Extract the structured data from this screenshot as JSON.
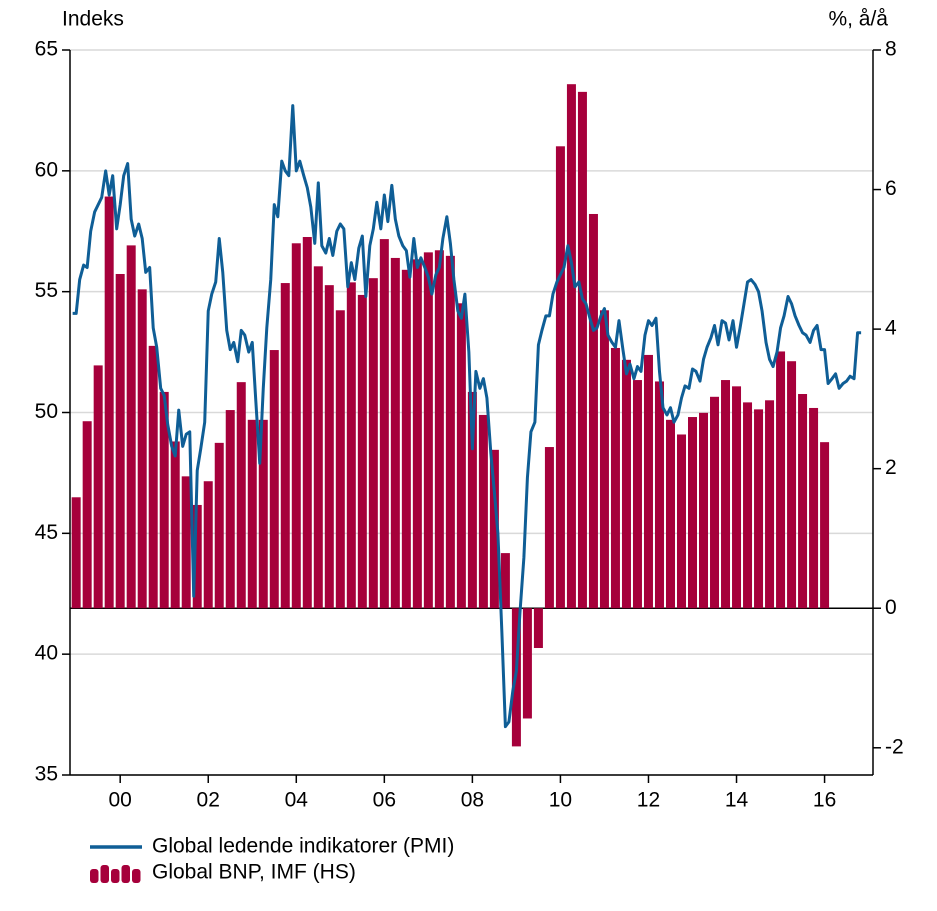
{
  "chart_data": {
    "type": "combo",
    "y_label": "Indeks",
    "y2_label": "%, å/å",
    "xlim": [
      1998.86,
      2017.1
    ],
    "xticks": [
      {
        "value": 2000,
        "label": "00"
      },
      {
        "value": 2002,
        "label": "02"
      },
      {
        "value": 2004,
        "label": "04"
      },
      {
        "value": 2006,
        "label": "06"
      },
      {
        "value": 2008,
        "label": "08"
      },
      {
        "value": 2010,
        "label": "10"
      },
      {
        "value": 2012,
        "label": "12"
      },
      {
        "value": 2014,
        "label": "14"
      },
      {
        "value": 2016,
        "label": "16"
      }
    ],
    "ylim": [
      35,
      65
    ],
    "yticks": [
      35,
      40,
      45,
      50,
      55,
      60,
      65
    ],
    "y2lim": [
      -2.39,
      8
    ],
    "y2ticks": [
      -2,
      0,
      2,
      4,
      6,
      8
    ],
    "grid": true,
    "legend": "bottom-left",
    "series": [
      {
        "name": "Global ledende indikatorer (PMI)",
        "type": "line",
        "color": "#0f5e96",
        "x": [
          1998.92,
          1999.0,
          1999.08,
          1999.17,
          1999.25,
          1999.33,
          1999.42,
          1999.5,
          1999.58,
          1999.67,
          1999.75,
          1999.83,
          1999.92,
          2000.0,
          2000.08,
          2000.17,
          2000.25,
          2000.33,
          2000.42,
          2000.5,
          2000.58,
          2000.67,
          2000.75,
          2000.83,
          2000.92,
          2001.0,
          2001.08,
          2001.17,
          2001.25,
          2001.33,
          2001.42,
          2001.5,
          2001.58,
          2001.67,
          2001.75,
          2001.83,
          2001.92,
          2002.0,
          2002.08,
          2002.17,
          2002.25,
          2002.33,
          2002.42,
          2002.5,
          2002.58,
          2002.67,
          2002.75,
          2002.83,
          2002.92,
          2003.0,
          2003.08,
          2003.17,
          2003.25,
          2003.33,
          2003.42,
          2003.5,
          2003.58,
          2003.67,
          2003.75,
          2003.83,
          2003.92,
          2004.0,
          2004.08,
          2004.17,
          2004.25,
          2004.33,
          2004.42,
          2004.5,
          2004.58,
          2004.67,
          2004.75,
          2004.83,
          2004.92,
          2005.0,
          2005.08,
          2005.17,
          2005.25,
          2005.33,
          2005.42,
          2005.5,
          2005.58,
          2005.67,
          2005.75,
          2005.83,
          2005.92,
          2006.0,
          2006.08,
          2006.17,
          2006.25,
          2006.33,
          2006.42,
          2006.5,
          2006.58,
          2006.67,
          2006.75,
          2006.83,
          2006.92,
          2007.0,
          2007.08,
          2007.17,
          2007.25,
          2007.33,
          2007.42,
          2007.5,
          2007.58,
          2007.67,
          2007.75,
          2007.83,
          2007.92,
          2008.0,
          2008.08,
          2008.17,
          2008.25,
          2008.33,
          2008.42,
          2008.5,
          2008.58,
          2008.67,
          2008.75,
          2008.83,
          2008.92,
          2009.0,
          2009.08,
          2009.17,
          2009.25,
          2009.33,
          2009.42,
          2009.5,
          2009.58,
          2009.67,
          2009.75,
          2009.83,
          2009.92,
          2010.0,
          2010.08,
          2010.17,
          2010.25,
          2010.33,
          2010.42,
          2010.5,
          2010.58,
          2010.67,
          2010.75,
          2010.83,
          2010.92,
          2011.0,
          2011.08,
          2011.17,
          2011.25,
          2011.33,
          2011.42,
          2011.5,
          2011.58,
          2011.67,
          2011.75,
          2011.83,
          2011.92,
          2012.0,
          2012.08,
          2012.17,
          2012.25,
          2012.33,
          2012.42,
          2012.5,
          2012.58,
          2012.67,
          2012.75,
          2012.83,
          2012.92,
          2013.0,
          2013.08,
          2013.17,
          2013.25,
          2013.33,
          2013.42,
          2013.5,
          2013.58,
          2013.67,
          2013.75,
          2013.83,
          2013.92,
          2014.0,
          2014.08,
          2014.17,
          2014.25,
          2014.33,
          2014.42,
          2014.5,
          2014.58,
          2014.67,
          2014.75,
          2014.83,
          2014.92,
          2015.0,
          2015.08,
          2015.17,
          2015.25,
          2015.33,
          2015.42,
          2015.5,
          2015.58,
          2015.67,
          2015.75,
          2015.83,
          2015.92,
          2016.0,
          2016.08,
          2016.17,
          2016.25,
          2016.33,
          2016.42,
          2016.5,
          2016.58,
          2016.67,
          2016.75,
          2016.83
        ],
        "values": [
          54.1,
          54.1,
          55.5,
          56.1,
          56.0,
          57.5,
          58.3,
          58.6,
          58.9,
          60.0,
          59.0,
          59.8,
          57.6,
          58.6,
          59.8,
          60.3,
          58.0,
          57.3,
          57.8,
          57.2,
          55.8,
          56.0,
          53.5,
          52.7,
          51.0,
          50.7,
          49.5,
          48.6,
          48.2,
          50.1,
          48.6,
          49.1,
          49.2,
          42.4,
          47.6,
          48.5,
          49.6,
          54.2,
          54.9,
          55.4,
          57.2,
          55.8,
          53.4,
          52.6,
          52.9,
          52.1,
          53.4,
          53.2,
          52.5,
          52.9,
          50.5,
          47.9,
          51.0,
          53.5,
          55.5,
          58.6,
          58.1,
          60.4,
          60.0,
          59.8,
          62.7,
          60.0,
          60.4,
          59.8,
          59.3,
          58.5,
          57.0,
          59.5,
          56.9,
          56.6,
          57.2,
          56.5,
          57.5,
          57.8,
          57.6,
          55.2,
          56.2,
          55.5,
          56.8,
          57.3,
          54.8,
          56.9,
          57.6,
          58.7,
          57.6,
          59.0,
          57.9,
          59.4,
          58.0,
          57.3,
          56.9,
          56.7,
          55.6,
          57.2,
          56.0,
          56.4,
          56.0,
          55.6,
          54.9,
          55.7,
          56.0,
          57.2,
          58.1,
          57.0,
          55.5,
          54.2,
          53.9,
          54.9,
          52.5,
          48.5,
          51.7,
          51.0,
          51.4,
          50.6,
          48.3,
          46.7,
          45.0,
          40.9,
          37.0,
          37.2,
          38.5,
          39.3,
          41.7,
          44.0,
          47.3,
          49.2,
          49.6,
          52.8,
          53.4,
          54.0,
          54.0,
          54.9,
          55.4,
          55.7,
          56.0,
          56.9,
          56.2,
          55.2,
          55.4,
          54.7,
          54.5,
          53.9,
          53.4,
          53.5,
          54.0,
          54.3,
          53.2,
          52.9,
          52.7,
          53.8,
          52.6,
          51.6,
          52.0,
          51.4,
          51.9,
          51.7,
          53.2,
          53.8,
          53.6,
          53.9,
          51.7,
          50.2,
          49.9,
          50.2,
          49.6,
          49.9,
          50.6,
          51.1,
          51.0,
          51.8,
          51.7,
          51.3,
          52.2,
          52.7,
          53.1,
          53.6,
          52.8,
          53.8,
          53.7,
          53.0,
          53.8,
          52.7,
          53.5,
          54.5,
          55.4,
          55.5,
          55.3,
          55.0,
          54.2,
          52.9,
          52.2,
          51.9,
          52.5,
          53.5,
          54.0,
          54.8,
          54.5,
          54.0,
          53.6,
          53.3,
          53.2,
          52.9,
          53.4,
          53.6,
          52.6,
          52.6,
          51.2,
          51.4,
          51.6,
          51.0,
          51.2,
          51.3,
          51.5,
          51.4,
          53.3,
          53.3
        ]
      },
      {
        "name": "Global BNP, IMF (HS)",
        "type": "bar",
        "axis": "y2",
        "color": "#a6003b",
        "x": [
          1999,
          1999.25,
          1999.5,
          1999.75,
          2000,
          2000.25,
          2000.5,
          2000.75,
          2001,
          2001.25,
          2001.5,
          2001.75,
          2002,
          2002.25,
          2002.5,
          2002.75,
          2003,
          2003.25,
          2003.5,
          2003.75,
          2004,
          2004.25,
          2004.5,
          2004.75,
          2005,
          2005.25,
          2005.5,
          2005.75,
          2006,
          2006.25,
          2006.5,
          2006.75,
          2007,
          2007.25,
          2007.5,
          2007.75,
          2008,
          2008.25,
          2008.5,
          2008.75,
          2009,
          2009.25,
          2009.5,
          2009.75,
          2010,
          2010.25,
          2010.5,
          2010.75,
          2011,
          2011.25,
          2011.5,
          2011.75,
          2012,
          2012.25,
          2012.5,
          2012.75,
          2013,
          2013.25,
          2013.5,
          2013.75,
          2014,
          2014.25,
          2014.5,
          2014.75,
          2015,
          2015.25,
          2015.5,
          2015.75,
          2016
        ],
        "values": [
          1.59,
          2.68,
          3.48,
          5.9,
          4.79,
          5.2,
          4.57,
          3.76,
          3.1,
          2.39,
          1.89,
          1.48,
          1.82,
          2.37,
          2.84,
          3.24,
          2.7,
          2.7,
          3.7,
          4.66,
          5.23,
          5.32,
          4.9,
          4.63,
          4.27,
          4.67,
          4.49,
          4.73,
          5.29,
          5.02,
          4.85,
          5.0,
          5.1,
          5.13,
          5.05,
          4.37,
          3.1,
          2.77,
          2.27,
          0.79,
          -1.98,
          -1.58,
          -0.57,
          2.31,
          6.62,
          7.51,
          7.4,
          5.65,
          4.27,
          3.73,
          3.56,
          3.27,
          3.63,
          3.25,
          2.7,
          2.49,
          2.74,
          2.8,
          3.03,
          3.27,
          3.18,
          2.95,
          2.85,
          2.98,
          3.68,
          3.54,
          3.07,
          2.87,
          2.38
        ]
      }
    ]
  }
}
